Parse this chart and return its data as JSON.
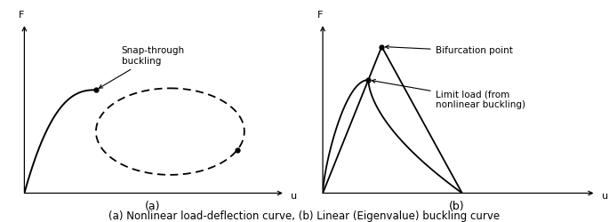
{
  "fig_width": 6.85,
  "fig_height": 2.5,
  "dpi": 100,
  "bg_color": "#ffffff",
  "line_color": "#000000",
  "caption": "(a) Nonlinear load-deflection curve, (b) Linear (Eigenvalue) buckling curve",
  "caption_fontsize": 8.5,
  "label_a": "(a)",
  "label_b": "(b)",
  "snap_label": "Snap-through\nbuckling",
  "bifurcation_label": "Bifurcation point",
  "limit_load_label": "Limit load (from\nnonlinear buckling)"
}
